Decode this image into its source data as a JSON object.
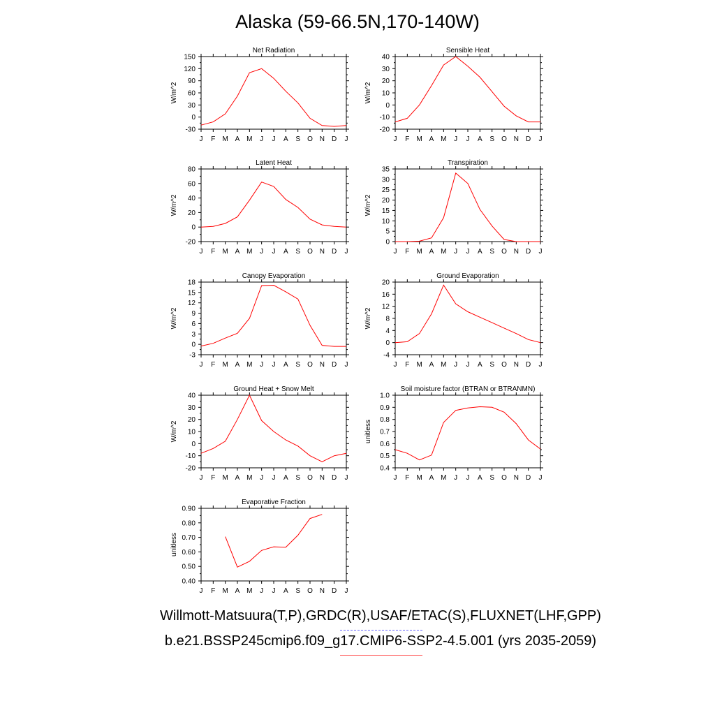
{
  "title": "Alaska (59-66.5N,170-140W)",
  "month_labels": [
    "J",
    "F",
    "M",
    "A",
    "M",
    "J",
    "J",
    "A",
    "S",
    "O",
    "N",
    "D",
    "J"
  ],
  "footer": {
    "obs_sources": "Willmott-Matsuura(T,P),GRDC(R),USAF/ETAC(S),FLUXNET(LHF,GPP)",
    "case_name": "b.e21.BSSP245cmip6.f09_g17.CMIP6-SSP2-4.5.001 (yrs 2035-2059)"
  },
  "colors": {
    "model_line": "#ff0000",
    "obs_legend": "#6666ff",
    "case_legend": "#ff6666"
  },
  "chart_data": [
    {
      "type": "line",
      "title": "Net Radiation",
      "ylabel": "W/m^2",
      "ylim": [
        -30,
        150
      ],
      "yticks": [
        "-30",
        "0",
        "30",
        "60",
        "90",
        "120",
        "150"
      ],
      "x": [
        1,
        2,
        3,
        4,
        5,
        6,
        7,
        8,
        9,
        10,
        11,
        12,
        13
      ],
      "series": [
        {
          "values": [
            -20,
            -12,
            8,
            52,
            110,
            120,
            96,
            64,
            35,
            -3,
            -21,
            -23,
            -21
          ]
        }
      ]
    },
    {
      "type": "line",
      "title": "Sensible Heat",
      "ylabel": "W/m^2",
      "ylim": [
        -20,
        40
      ],
      "yticks": [
        "-20",
        "-10",
        "0",
        "10",
        "20",
        "30",
        "40"
      ],
      "x": [
        1,
        2,
        3,
        4,
        5,
        6,
        7,
        8,
        9,
        10,
        11,
        12,
        13
      ],
      "series": [
        {
          "values": [
            -14,
            -11,
            0,
            16,
            33,
            40,
            32,
            23,
            11,
            -1,
            -9,
            -14,
            -14
          ]
        }
      ]
    },
    {
      "type": "line",
      "title": "Latent Heat",
      "ylabel": "W/m^2",
      "ylim": [
        -20,
        80
      ],
      "yticks": [
        "-20",
        "0",
        "20",
        "40",
        "60",
        "80"
      ],
      "x": [
        1,
        2,
        3,
        4,
        5,
        6,
        7,
        8,
        9,
        10,
        11,
        12,
        13
      ],
      "series": [
        {
          "values": [
            0,
            1,
            5,
            14,
            37,
            62,
            56,
            38,
            27,
            11,
            3,
            1,
            0
          ]
        }
      ]
    },
    {
      "type": "line",
      "title": "Transpiration",
      "ylabel": "W/m^2",
      "ylim": [
        0,
        35
      ],
      "yticks": [
        "0",
        "5",
        "10",
        "15",
        "20",
        "25",
        "30",
        "35"
      ],
      "x": [
        1,
        2,
        3,
        4,
        5,
        6,
        7,
        8,
        9,
        10,
        11,
        12,
        13
      ],
      "series": [
        {
          "values": [
            0,
            0,
            0.2,
            1.8,
            11.5,
            33,
            28,
            15.5,
            7.5,
            1,
            0,
            0,
            0
          ]
        }
      ]
    },
    {
      "type": "line",
      "title": "Canopy Evaporation",
      "ylabel": "W/m^2",
      "ylim": [
        -3,
        18
      ],
      "yticks": [
        "-3",
        "0",
        "3",
        "6",
        "9",
        "12",
        "15",
        "18"
      ],
      "x": [
        1,
        2,
        3,
        4,
        5,
        6,
        7,
        8,
        9,
        10,
        11,
        12,
        13
      ],
      "series": [
        {
          "values": [
            -0.5,
            0.3,
            1.8,
            3.2,
            7.5,
            17,
            17.1,
            15.2,
            13.1,
            5.5,
            -0.3,
            -0.6,
            -0.6
          ]
        }
      ]
    },
    {
      "type": "line",
      "title": "Ground Evaporation",
      "ylabel": "W/m^2",
      "ylim": [
        -4,
        20
      ],
      "yticks": [
        "-4",
        "0",
        "4",
        "8",
        "12",
        "16",
        "20"
      ],
      "x": [
        1,
        2,
        3,
        4,
        5,
        6,
        7,
        8,
        9,
        10,
        11,
        12,
        13
      ],
      "series": [
        {
          "values": [
            0,
            0.3,
            3,
            9.5,
            19,
            12.8,
            10.2,
            8.4,
            6.6,
            4.8,
            3,
            1,
            0
          ]
        }
      ]
    },
    {
      "type": "line",
      "title": "Ground Heat + Snow Melt",
      "ylabel": "W/m^2",
      "ylim": [
        -20,
        40
      ],
      "yticks": [
        "-20",
        "-10",
        "0",
        "10",
        "20",
        "30",
        "40"
      ],
      "x": [
        1,
        2,
        3,
        4,
        5,
        6,
        7,
        8,
        9,
        10,
        11,
        12,
        13
      ],
      "series": [
        {
          "values": [
            -8,
            -4,
            2,
            20,
            40,
            19,
            10,
            3,
            -2,
            -10,
            -15,
            -10,
            -8
          ]
        }
      ]
    },
    {
      "type": "line",
      "title": "Soil moisture factor (BTRAN or BTRANMN)",
      "ylabel": "unitless",
      "ylim": [
        0.4,
        1.0
      ],
      "yticks": [
        "0.4",
        "0.5",
        "0.6",
        "0.7",
        "0.8",
        "0.9",
        "1.0"
      ],
      "x": [
        1,
        2,
        3,
        4,
        5,
        6,
        7,
        8,
        9,
        10,
        11,
        12,
        13
      ],
      "series": [
        {
          "values": [
            0.55,
            0.52,
            0.465,
            0.505,
            0.775,
            0.875,
            0.895,
            0.905,
            0.9,
            0.86,
            0.765,
            0.63,
            0.555
          ]
        }
      ]
    },
    {
      "type": "line",
      "title": "Evaporative Fraction",
      "ylabel": "unitless",
      "ylim": [
        0.4,
        0.9
      ],
      "yticks": [
        "0.40",
        "0.50",
        "0.60",
        "0.70",
        "0.80",
        "0.90"
      ],
      "x": [
        1,
        2,
        3,
        4,
        5,
        6,
        7,
        8,
        9,
        10,
        11,
        12,
        13
      ],
      "series": [
        {
          "values": [
            null,
            null,
            0.705,
            0.495,
            0.535,
            0.61,
            0.635,
            0.632,
            0.715,
            0.83,
            0.858,
            null,
            null
          ]
        }
      ]
    }
  ]
}
